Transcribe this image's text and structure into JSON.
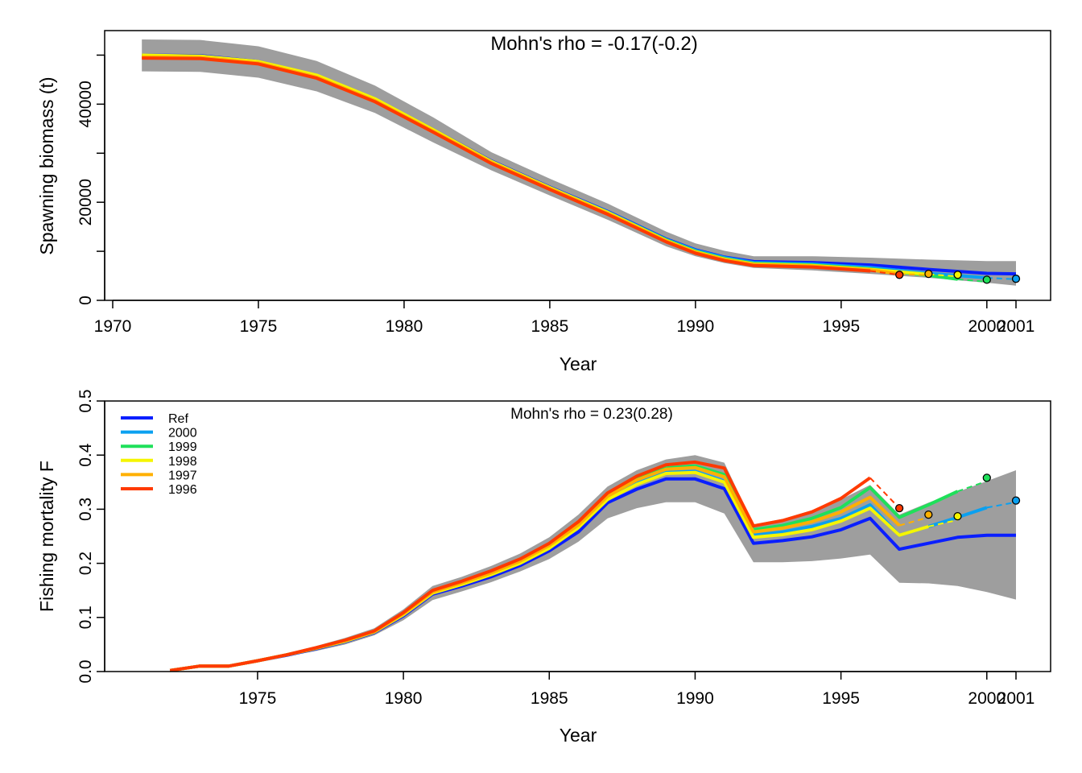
{
  "colors": {
    "band": "#9e9e9e",
    "Ref": "#0a1fff",
    "2000": "#0aa0f0",
    "1999": "#1fe05a",
    "1998": "#f5f500",
    "1997": "#ffb000",
    "1996": "#ff3a00"
  },
  "chart_data": [
    {
      "type": "line",
      "title": "Mohn's rho = -0.17(-0.2)",
      "xlabel": "Year",
      "ylabel": "Spawning biomass (t)",
      "xlim": [
        1970,
        2001
      ],
      "ylim": [
        0,
        55000
      ],
      "xticks": [
        1970,
        1975,
        1980,
        1985,
        1990,
        1995,
        2000,
        2001
      ],
      "yticks": [
        0,
        20000,
        40000
      ],
      "yminor": [
        10000,
        30000,
        50000
      ],
      "grid": false,
      "band": {
        "x": [
          1971,
          1973,
          1975,
          1977,
          1979,
          1981,
          1983,
          1985,
          1987,
          1989,
          1990,
          1991,
          1992,
          1994,
          1996,
          1998,
          2000,
          2001
        ],
        "upper": [
          53200,
          53100,
          51800,
          48800,
          43800,
          37300,
          30200,
          24800,
          19700,
          14000,
          11600,
          10100,
          9000,
          9000,
          8700,
          8300,
          8000,
          8000
        ],
        "lower": [
          46700,
          46600,
          45400,
          42600,
          38200,
          32200,
          26500,
          21400,
          16400,
          11000,
          9000,
          7600,
          6600,
          6100,
          5400,
          4600,
          3600,
          3000
        ]
      },
      "series": [
        {
          "name": "Ref",
          "x": [
            1971,
            1973,
            1975,
            1977,
            1979,
            1981,
            1983,
            1985,
            1987,
            1989,
            1990,
            1991,
            1992,
            1994,
            1996,
            1998,
            2000,
            2001
          ],
          "y": [
            50000,
            49900,
            48700,
            45800,
            41000,
            34800,
            28400,
            23100,
            18100,
            12500,
            10300,
            8800,
            7900,
            7700,
            7200,
            6300,
            5500,
            5400
          ]
        },
        {
          "name": "2000",
          "x": [
            1971,
            1973,
            1975,
            1977,
            1979,
            1981,
            1983,
            1985,
            1987,
            1989,
            1990,
            1991,
            1992,
            1994,
            1996,
            1998,
            2000
          ],
          "y": [
            49900,
            49800,
            48600,
            45700,
            40900,
            34700,
            28300,
            23000,
            18000,
            12400,
            10200,
            8700,
            7700,
            7400,
            6700,
            5500,
            4600
          ]
        },
        {
          "name": "1999",
          "x": [
            1971,
            1973,
            1975,
            1977,
            1979,
            1981,
            1983,
            1985,
            1987,
            1989,
            1990,
            1991,
            1992,
            1994,
            1996,
            1998,
            1999
          ],
          "y": [
            49800,
            49700,
            48500,
            45600,
            40800,
            34600,
            28200,
            22900,
            17900,
            12300,
            10000,
            8500,
            7500,
            7200,
            6400,
            5100,
            4300
          ]
        },
        {
          "name": "1998",
          "x": [
            1971,
            1973,
            1975,
            1977,
            1979,
            1981,
            1983,
            1985,
            1987,
            1989,
            1990,
            1991,
            1992,
            1994,
            1996,
            1998
          ],
          "y": [
            50000,
            49800,
            48700,
            45900,
            41100,
            34800,
            28300,
            23000,
            17900,
            12200,
            9900,
            8400,
            7400,
            7100,
            6300,
            5300
          ]
        },
        {
          "name": "1997",
          "x": [
            1971,
            1973,
            1975,
            1977,
            1979,
            1981,
            1983,
            1985,
            1987,
            1989,
            1990,
            1991,
            1992,
            1994,
            1996,
            1997
          ],
          "y": [
            49600,
            49500,
            48400,
            45500,
            40700,
            34500,
            28100,
            22800,
            17700,
            12100,
            9800,
            8300,
            7300,
            7000,
            6200,
            5400
          ]
        },
        {
          "name": "1996",
          "x": [
            1971,
            1973,
            1975,
            1977,
            1979,
            1981,
            1983,
            1985,
            1987,
            1989,
            1990,
            1991,
            1992,
            1994,
            1996
          ],
          "y": [
            49400,
            49300,
            48200,
            45300,
            40500,
            34300,
            27900,
            22600,
            17500,
            11900,
            9600,
            8100,
            7100,
            6800,
            6000
          ]
        }
      ],
      "dashed": [
        {
          "name": "2000",
          "x": [
            2000,
            2001
          ],
          "y": [
            4600,
            4300
          ]
        },
        {
          "name": "1999",
          "x": [
            1999,
            2000
          ],
          "y": [
            4300,
            3800
          ]
        },
        {
          "name": "1998",
          "x": [
            1998,
            1999
          ],
          "y": [
            5300,
            4900
          ]
        },
        {
          "name": "1997",
          "x": [
            1997,
            1998
          ],
          "y": [
            5400,
            5100
          ]
        },
        {
          "name": "1996",
          "x": [
            1996,
            1997
          ],
          "y": [
            6000,
            5200
          ]
        }
      ],
      "points": [
        {
          "name": "1996",
          "x": 1997,
          "y": 5200
        },
        {
          "name": "1997",
          "x": 1998,
          "y": 5400
        },
        {
          "name": "1998",
          "x": 1999,
          "y": 5200
        },
        {
          "name": "1999",
          "x": 2000,
          "y": 4200
        },
        {
          "name": "2000",
          "x": 2001,
          "y": 4400
        }
      ]
    },
    {
      "type": "line",
      "title": "Mohn's rho = 0.23(0.28)",
      "xlabel": "Year",
      "ylabel": "Fishing mortality F",
      "xlim": [
        1971,
        2001
      ],
      "ylim": [
        0,
        0.5
      ],
      "xticks": [
        1975,
        1980,
        1985,
        1990,
        1995,
        2000,
        2001
      ],
      "yticks": [
        0.0,
        0.1,
        0.2,
        0.3,
        0.4,
        0.5
      ],
      "ytick_labels": [
        "0.0",
        "0.1",
        "0.2",
        "0.3",
        "0.4",
        "0.5"
      ],
      "grid": false,
      "legend": {
        "position": "top-left",
        "entries": [
          "Ref",
          "2000",
          "1999",
          "1998",
          "1997",
          "1996"
        ]
      },
      "band": {
        "x": [
          1972,
          1973,
          1974,
          1975,
          1976,
          1977,
          1978,
          1979,
          1980,
          1981,
          1982,
          1983,
          1984,
          1985,
          1986,
          1987,
          1988,
          1989,
          1990,
          1991,
          1992,
          1993,
          1994,
          1995,
          1996,
          1997,
          1998,
          1999,
          2000,
          2001
        ],
        "upper": [
          0.003,
          0.012,
          0.012,
          0.023,
          0.034,
          0.047,
          0.062,
          0.08,
          0.115,
          0.158,
          0.175,
          0.195,
          0.218,
          0.248,
          0.29,
          0.342,
          0.372,
          0.392,
          0.4,
          0.386,
          0.272,
          0.282,
          0.298,
          0.318,
          0.345,
          0.29,
          0.312,
          0.332,
          0.352,
          0.372
        ],
        "lower": [
          0.001,
          0.008,
          0.008,
          0.018,
          0.028,
          0.038,
          0.05,
          0.067,
          0.095,
          0.132,
          0.148,
          0.165,
          0.185,
          0.208,
          0.24,
          0.283,
          0.302,
          0.313,
          0.313,
          0.292,
          0.202,
          0.202,
          0.204,
          0.209,
          0.216,
          0.164,
          0.163,
          0.158,
          0.147,
          0.133
        ]
      },
      "series": [
        {
          "name": "Ref",
          "x": [
            1972,
            1973,
            1974,
            1975,
            1976,
            1977,
            1978,
            1979,
            1980,
            1981,
            1982,
            1983,
            1984,
            1985,
            1986,
            1987,
            1988,
            1989,
            1990,
            1991,
            1992,
            1993,
            1994,
            1995,
            1996,
            1997,
            1998,
            1999,
            2000,
            2001
          ],
          "y": [
            0.002,
            0.01,
            0.01,
            0.02,
            0.03,
            0.042,
            0.055,
            0.072,
            0.103,
            0.143,
            0.158,
            0.175,
            0.196,
            0.223,
            0.258,
            0.312,
            0.337,
            0.356,
            0.356,
            0.338,
            0.237,
            0.242,
            0.249,
            0.262,
            0.283,
            0.226,
            0.237,
            0.248,
            0.252,
            0.252
          ]
        },
        {
          "name": "2000",
          "x": [
            1972,
            1973,
            1974,
            1975,
            1976,
            1977,
            1978,
            1979,
            1980,
            1981,
            1982,
            1983,
            1984,
            1985,
            1986,
            1987,
            1988,
            1989,
            1990,
            1991,
            1992,
            1993,
            1994,
            1995,
            1996,
            1997,
            1998,
            1999,
            2000
          ],
          "y": [
            0.002,
            0.01,
            0.01,
            0.02,
            0.031,
            0.043,
            0.056,
            0.073,
            0.106,
            0.146,
            0.162,
            0.18,
            0.202,
            0.23,
            0.268,
            0.32,
            0.348,
            0.368,
            0.37,
            0.352,
            0.252,
            0.258,
            0.268,
            0.283,
            0.308,
            0.252,
            0.268,
            0.285,
            0.303
          ]
        },
        {
          "name": "1999",
          "x": [
            1972,
            1973,
            1974,
            1975,
            1976,
            1977,
            1978,
            1979,
            1980,
            1981,
            1982,
            1983,
            1984,
            1985,
            1986,
            1987,
            1988,
            1989,
            1990,
            1991,
            1992,
            1993,
            1994,
            1995,
            1996,
            1997,
            1998,
            1999
          ],
          "y": [
            0.002,
            0.01,
            0.01,
            0.02,
            0.031,
            0.043,
            0.057,
            0.074,
            0.107,
            0.147,
            0.164,
            0.183,
            0.205,
            0.234,
            0.273,
            0.325,
            0.355,
            0.376,
            0.38,
            0.364,
            0.262,
            0.27,
            0.283,
            0.303,
            0.34,
            0.285,
            0.308,
            0.333
          ]
        },
        {
          "name": "1998",
          "x": [
            1972,
            1973,
            1974,
            1975,
            1976,
            1977,
            1978,
            1979,
            1980,
            1981,
            1982,
            1983,
            1984,
            1985,
            1986,
            1987,
            1988,
            1989,
            1990,
            1991,
            1992,
            1993,
            1994,
            1995,
            1996,
            1997,
            1998
          ],
          "y": [
            0.002,
            0.01,
            0.01,
            0.02,
            0.031,
            0.043,
            0.056,
            0.073,
            0.105,
            0.145,
            0.161,
            0.179,
            0.2,
            0.228,
            0.266,
            0.318,
            0.346,
            0.366,
            0.368,
            0.35,
            0.248,
            0.253,
            0.262,
            0.278,
            0.302,
            0.252,
            0.268
          ]
        },
        {
          "name": "1997",
          "x": [
            1972,
            1973,
            1974,
            1975,
            1976,
            1977,
            1978,
            1979,
            1980,
            1981,
            1982,
            1983,
            1984,
            1985,
            1986,
            1987,
            1988,
            1989,
            1990,
            1991,
            1992,
            1993,
            1994,
            1995,
            1996,
            1997
          ],
          "y": [
            0.002,
            0.01,
            0.01,
            0.02,
            0.031,
            0.043,
            0.057,
            0.074,
            0.107,
            0.147,
            0.164,
            0.182,
            0.204,
            0.233,
            0.271,
            0.324,
            0.354,
            0.374,
            0.377,
            0.36,
            0.258,
            0.265,
            0.277,
            0.295,
            0.322,
            0.27
          ]
        },
        {
          "name": "1996",
          "x": [
            1972,
            1973,
            1974,
            1975,
            1976,
            1977,
            1978,
            1979,
            1980,
            1981,
            1982,
            1983,
            1984,
            1985,
            1986,
            1987,
            1988,
            1989,
            1990,
            1991,
            1992,
            1993,
            1994,
            1995,
            1996
          ],
          "y": [
            0.002,
            0.01,
            0.01,
            0.02,
            0.031,
            0.044,
            0.058,
            0.075,
            0.109,
            0.15,
            0.167,
            0.186,
            0.208,
            0.237,
            0.277,
            0.33,
            0.361,
            0.382,
            0.387,
            0.376,
            0.269,
            0.279,
            0.295,
            0.32,
            0.358
          ]
        }
      ],
      "dashed": [
        {
          "name": "2000",
          "x": [
            2000,
            2001
          ],
          "y": [
            0.303,
            0.313
          ]
        },
        {
          "name": "1999",
          "x": [
            1999,
            2000
          ],
          "y": [
            0.333,
            0.352
          ]
        },
        {
          "name": "1998",
          "x": [
            1998,
            1999
          ],
          "y": [
            0.268,
            0.28
          ]
        },
        {
          "name": "1997",
          "x": [
            1997,
            1998
          ],
          "y": [
            0.27,
            0.285
          ]
        },
        {
          "name": "1996",
          "x": [
            1996,
            1997
          ],
          "y": [
            0.358,
            0.302
          ]
        }
      ],
      "points": [
        {
          "name": "1996",
          "x": 1997,
          "y": 0.302
        },
        {
          "name": "1997",
          "x": 1998,
          "y": 0.29
        },
        {
          "name": "1998",
          "x": 1999,
          "y": 0.287
        },
        {
          "name": "1999",
          "x": 2000,
          "y": 0.358
        },
        {
          "name": "2000",
          "x": 2001,
          "y": 0.316
        }
      ]
    }
  ]
}
